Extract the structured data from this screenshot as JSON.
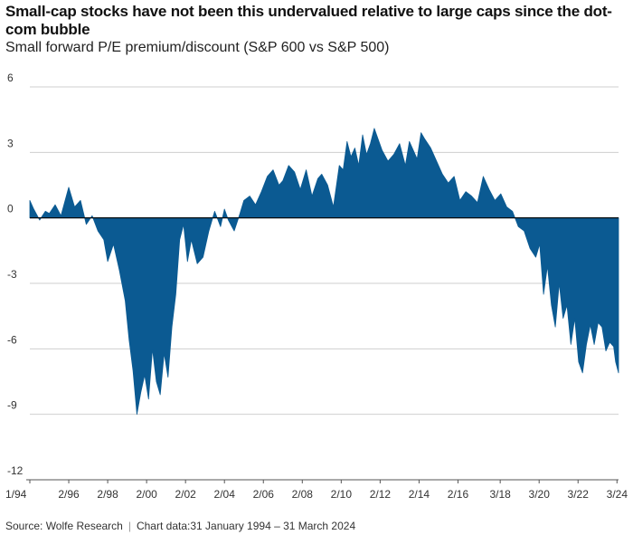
{
  "chart_data": {
    "type": "area",
    "title": "Small-cap stocks have not been this undervalued relative to large caps since the dot-com bubble",
    "subtitle": "Small forward P/E premium/discount (S&P 600 vs S&P 500)",
    "ylim": [
      -12,
      6
    ],
    "yticks": [
      6,
      3,
      0,
      -3,
      -6,
      -9,
      -12
    ],
    "ytick_labels": [
      "6",
      "3",
      "0",
      "-3",
      "-6",
      "-9",
      "-12"
    ],
    "xlim": [
      1994.0,
      2024.25
    ],
    "xticks": [
      1994.0,
      1996.0,
      1998.0,
      2000.0,
      2002.0,
      2004.0,
      2006.0,
      2008.0,
      2010.0,
      2012.0,
      2014.0,
      2016.0,
      2018.17,
      2020.17,
      2022.17,
      2024.17
    ],
    "xtick_labels": [
      "1/94",
      "2/96",
      "2/98",
      "2/00",
      "2/02",
      "2/04",
      "2/06",
      "2/08",
      "2/10",
      "2/12",
      "2/14",
      "2/16",
      "3/18",
      "3/20",
      "3/22",
      "3/24"
    ],
    "grid": "horizontal",
    "color": "#0b5a92",
    "series": [
      {
        "x": [
          1994.0,
          1994.2,
          1994.5,
          1994.8,
          1995.0,
          1995.3,
          1995.6,
          1996.0,
          1996.3,
          1996.6,
          1996.9,
          1997.2,
          1997.5,
          1997.8,
          1998.0,
          1998.3,
          1998.6,
          1998.9,
          1999.1,
          1999.3,
          1999.5,
          1999.7,
          1999.9,
          2000.1,
          2000.3,
          2000.5,
          2000.7,
          2000.9,
          2001.1,
          2001.3,
          2001.5,
          2001.7,
          2001.9,
          2002.1,
          2002.3,
          2002.6,
          2002.9,
          2003.2,
          2003.5,
          2003.8,
          2004.0,
          2004.2,
          2004.5,
          2004.8,
          2005.0,
          2005.3,
          2005.6,
          2005.9,
          2006.2,
          2006.5,
          2006.8,
          2007.0,
          2007.3,
          2007.6,
          2007.9,
          2008.2,
          2008.5,
          2008.8,
          2009.0,
          2009.3,
          2009.6,
          2009.9,
          2010.1,
          2010.3,
          2010.5,
          2010.7,
          2010.9,
          2011.1,
          2011.3,
          2011.5,
          2011.7,
          2011.9,
          2012.1,
          2012.4,
          2012.7,
          2013.0,
          2013.3,
          2013.5,
          2013.7,
          2013.9,
          2014.1,
          2014.3,
          2014.6,
          2014.9,
          2015.2,
          2015.5,
          2015.8,
          2016.1,
          2016.4,
          2016.7,
          2017.0,
          2017.3,
          2017.6,
          2017.9,
          2018.2,
          2018.5,
          2018.8,
          2019.1,
          2019.4,
          2019.7,
          2020.0,
          2020.2,
          2020.4,
          2020.6,
          2020.8,
          2021.0,
          2021.2,
          2021.4,
          2021.6,
          2021.8,
          2022.0,
          2022.2,
          2022.4,
          2022.6,
          2022.8,
          2023.0,
          2023.2,
          2023.4,
          2023.6,
          2023.8,
          2024.0,
          2024.1,
          2024.25
        ],
        "y": [
          0.8,
          0.4,
          -0.1,
          0.3,
          0.2,
          0.6,
          0.1,
          1.4,
          0.5,
          0.8,
          -0.3,
          0.1,
          -0.6,
          -1.0,
          -2.0,
          -1.2,
          -2.4,
          -3.8,
          -5.6,
          -7.0,
          -9.0,
          -8.0,
          -7.2,
          -8.3,
          -6.0,
          -7.5,
          -8.1,
          -6.2,
          -7.3,
          -5.0,
          -3.5,
          -1.0,
          -0.3,
          -2.0,
          -1.0,
          -2.1,
          -1.8,
          -0.6,
          0.3,
          -0.4,
          0.4,
          -0.1,
          -0.6,
          0.2,
          0.8,
          1.0,
          0.6,
          1.2,
          1.9,
          2.2,
          1.5,
          1.7,
          2.4,
          2.1,
          1.3,
          2.2,
          1.0,
          1.8,
          2.0,
          1.5,
          0.5,
          2.4,
          2.2,
          3.5,
          2.8,
          3.2,
          2.4,
          3.8,
          2.9,
          3.4,
          4.1,
          3.6,
          3.1,
          2.6,
          2.9,
          3.4,
          2.4,
          3.5,
          3.1,
          2.7,
          3.9,
          3.6,
          3.2,
          2.6,
          2.0,
          1.6,
          1.9,
          0.8,
          1.2,
          1.0,
          0.7,
          1.9,
          1.3,
          0.8,
          1.1,
          0.5,
          0.3,
          -0.4,
          -0.6,
          -1.4,
          -1.8,
          -1.2,
          -3.5,
          -2.2,
          -4.0,
          -5.0,
          -3.0,
          -4.6,
          -4.0,
          -5.8,
          -4.6,
          -6.6,
          -7.1,
          -5.8,
          -4.9,
          -5.8,
          -4.8,
          -5.0,
          -6.1,
          -5.7,
          -5.9,
          -6.6,
          -7.1
        ]
      }
    ],
    "source": "Source: Wolfe Research",
    "chart_note": "Chart data:31 January 1994 – 31 March 2024"
  }
}
